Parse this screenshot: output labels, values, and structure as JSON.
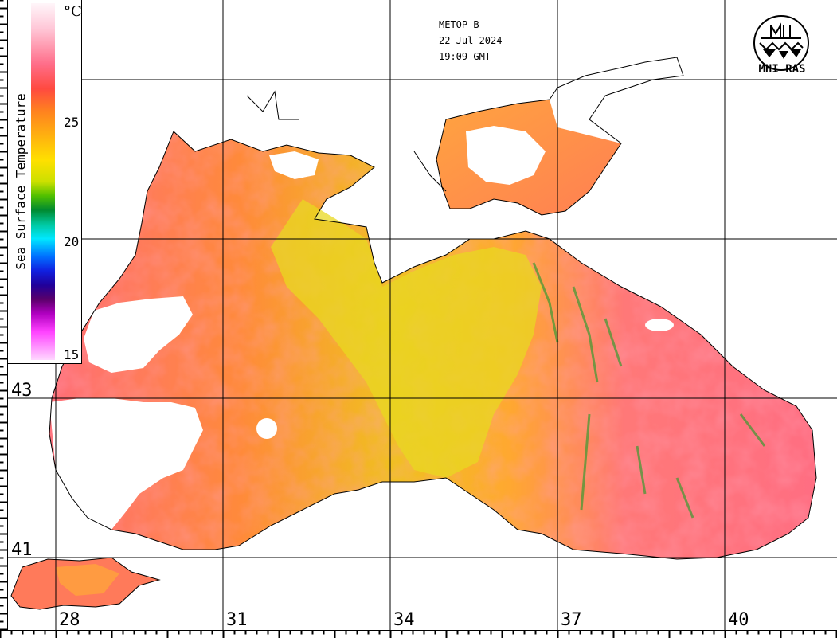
{
  "satellite": "METOP-B",
  "date": "22 Jul 2024",
  "time": "19:09 GMT",
  "organization": "MHI RAS",
  "legend": {
    "title": "Sea Surface Temperature",
    "unit": "°C",
    "ticks": [
      "25",
      "20",
      "15"
    ]
  },
  "grid": {
    "latitudes": [
      "43",
      "41"
    ],
    "longitudes": [
      "28",
      "31",
      "34",
      "37",
      "40"
    ]
  },
  "colors": {
    "land": "#ffffff",
    "cloud": "#ffffff",
    "sst_warm": "#ff6e7a",
    "sst_mid": "#ff8a2a",
    "sst_cool": "#e8d800"
  },
  "icons": [
    "mhi-ras-logo-icon"
  ]
}
